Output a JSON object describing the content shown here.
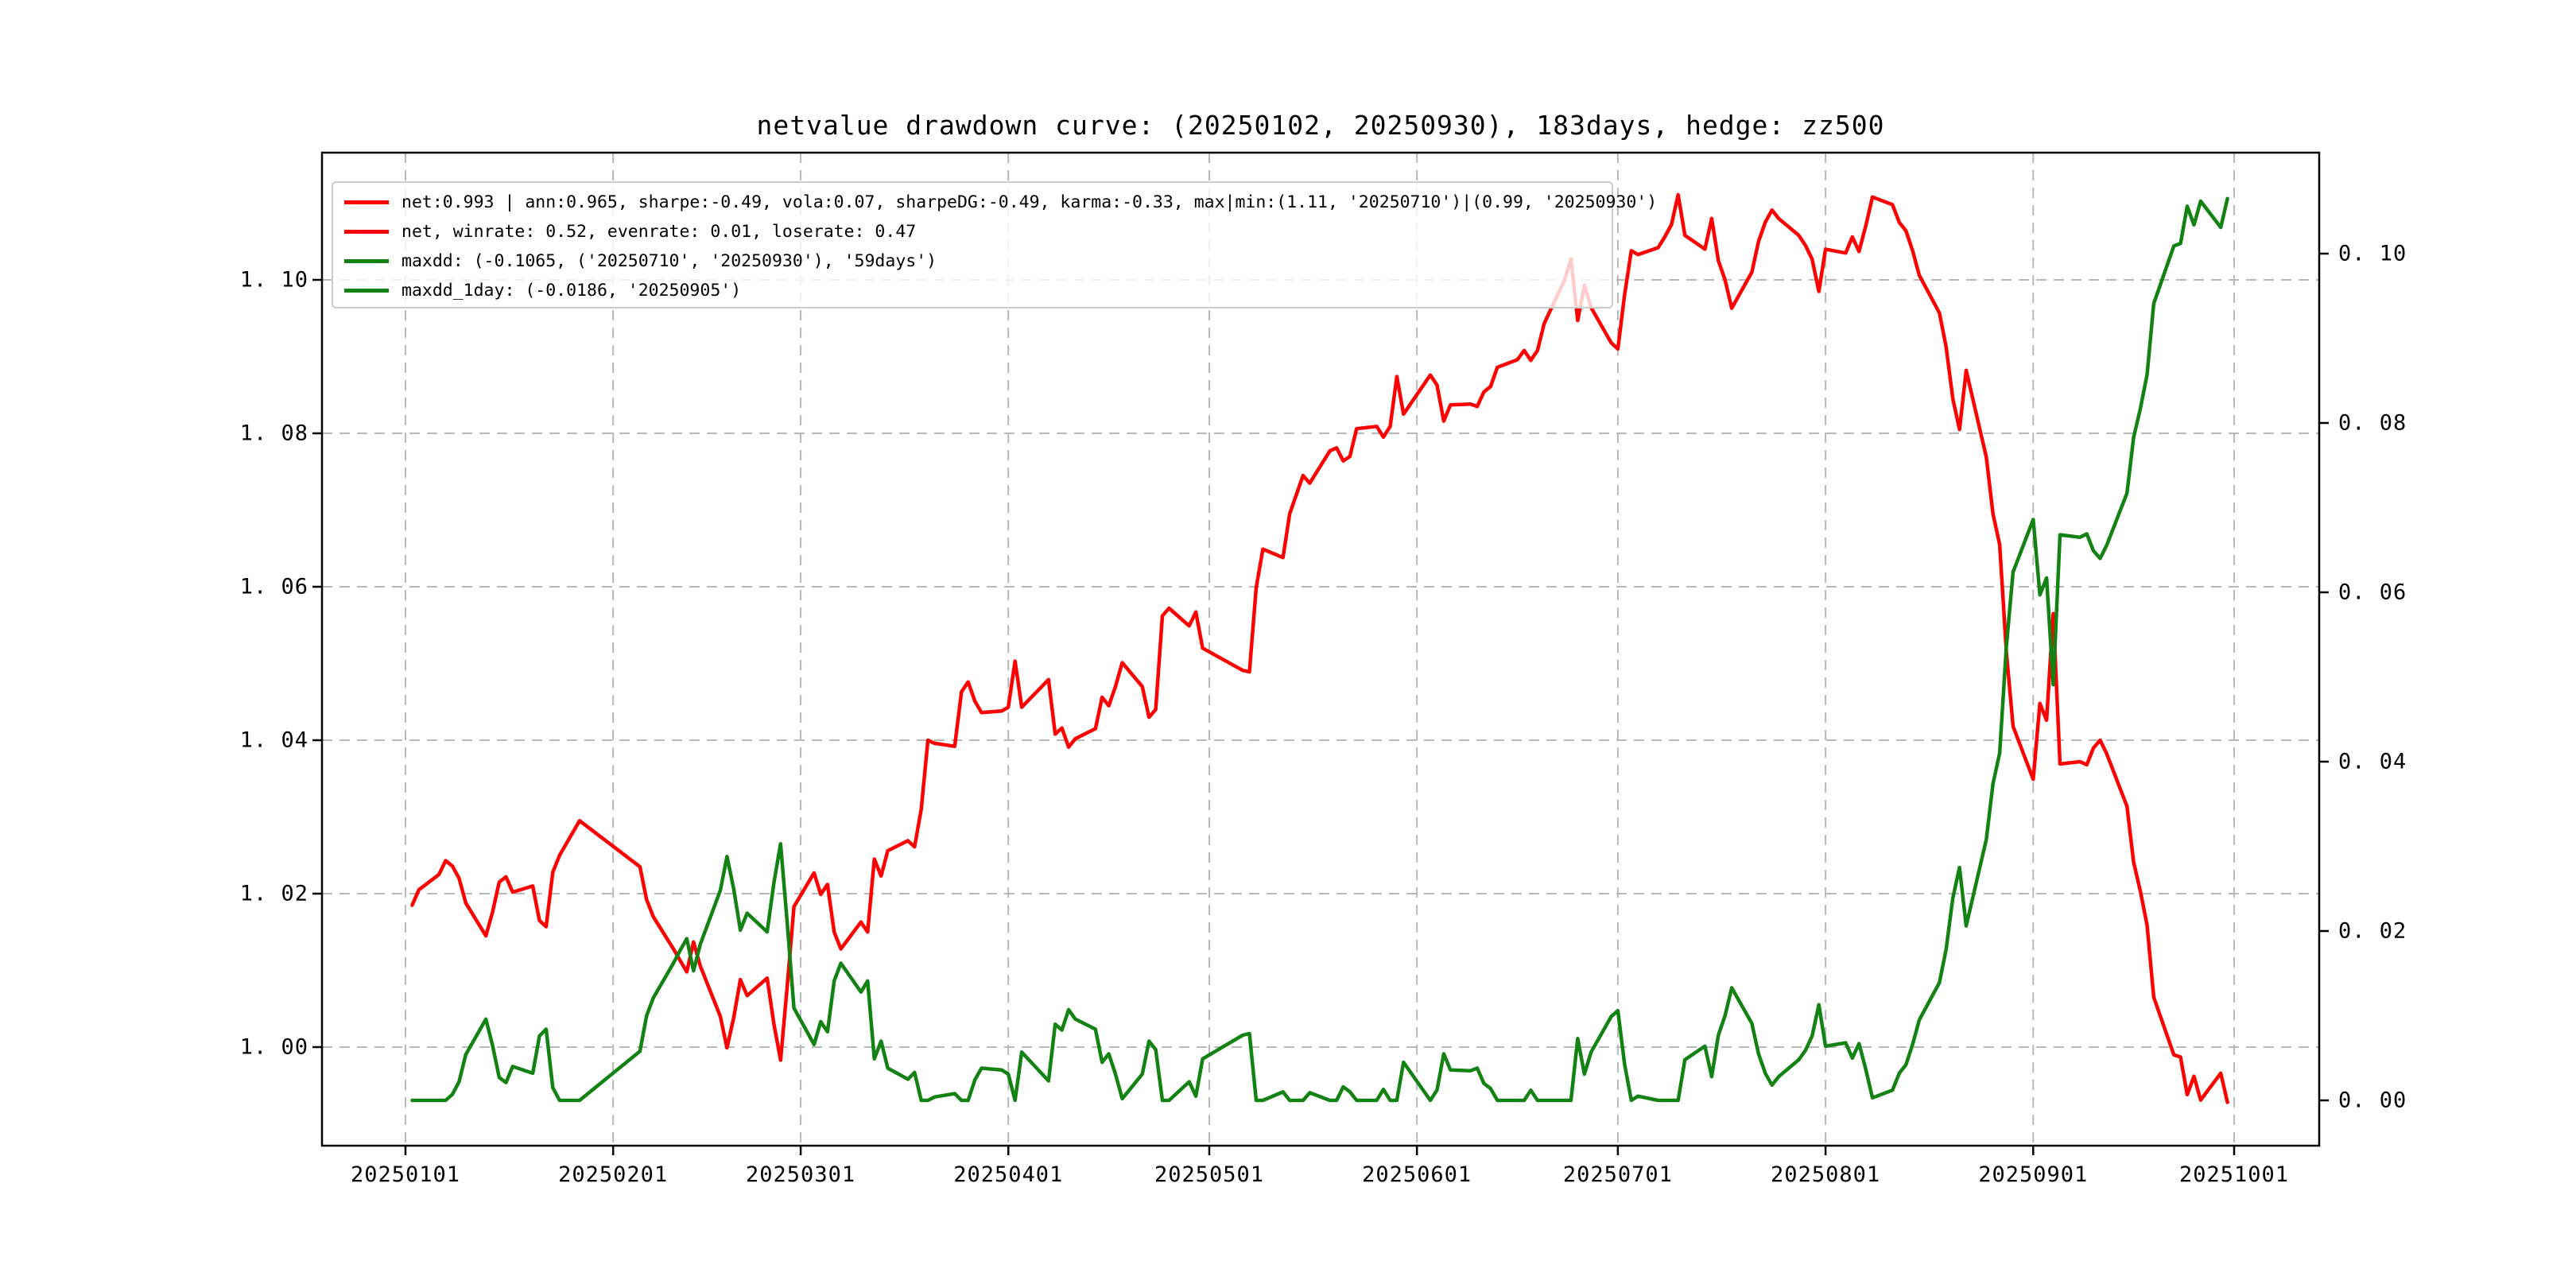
{
  "title": "netvalue drawdown curve: (20250102, 20250930), 183days, hedge: zz500",
  "legend": {
    "items": [
      {
        "label": "net:0.993 | ann:0.965, sharpe:-0.49, vola:0.07, sharpeDG:-0.49, karma:-0.33, max|min:(1.11, '20250710')|(0.99, '20250930')",
        "color": "#ff0000",
        "series": "net"
      },
      {
        "label": "net, winrate: 0.52, evenrate: 0.01, loserate: 0.47",
        "color": "#ff0000",
        "series": "net"
      },
      {
        "label": "maxdd: (-0.1065, ('20250710', '20250930'), '59days')",
        "color": "#128212",
        "series": "drawdown"
      },
      {
        "label": "maxdd_1day: (-0.0186, '20250905')",
        "color": "#128212",
        "series": "drawdown"
      }
    ]
  },
  "axes": {
    "y_left": {
      "ticks": [
        {
          "label": "1. 00",
          "value": 1.0
        },
        {
          "label": "1. 02",
          "value": 1.02
        },
        {
          "label": "1. 04",
          "value": 1.04
        },
        {
          "label": "1. 06",
          "value": 1.06
        },
        {
          "label": "1. 08",
          "value": 1.08
        },
        {
          "label": "1. 10",
          "value": 1.1
        }
      ]
    },
    "y_right": {
      "ticks": [
        {
          "label": "0. 00",
          "value": 0.0
        },
        {
          "label": "0. 02",
          "value": 0.02
        },
        {
          "label": "0. 04",
          "value": 0.04
        },
        {
          "label": "0. 06",
          "value": 0.06
        },
        {
          "label": "0. 08",
          "value": 0.08
        },
        {
          "label": "0. 10",
          "value": 0.1
        }
      ]
    },
    "x": {
      "ticks": [
        {
          "label": "20250101",
          "date": "20250101"
        },
        {
          "label": "20250201",
          "date": "20250201"
        },
        {
          "label": "20250301",
          "date": "20250301"
        },
        {
          "label": "20250401",
          "date": "20250401"
        },
        {
          "label": "20250501",
          "date": "20250501"
        },
        {
          "label": "20250601",
          "date": "20250601"
        },
        {
          "label": "20250701",
          "date": "20250701"
        },
        {
          "label": "20250801",
          "date": "20250801"
        },
        {
          "label": "20250901",
          "date": "20250901"
        },
        {
          "label": "20251001",
          "date": "20251001"
        }
      ]
    }
  },
  "chart_data": {
    "type": "line",
    "title": "netvalue drawdown curve: (20250102, 20250930), 183days, hedge: zz500",
    "x_range": [
      "20250102",
      "20250930"
    ],
    "trading_days": 183,
    "hedge": "zz500",
    "grid": true,
    "legend_position": "upper left",
    "ylim_left": [
      0.9872,
      1.1166
    ],
    "ylim_right": [
      -0.0053,
      0.1119
    ],
    "stats": {
      "net": 0.993,
      "ann": 0.965,
      "sharpe": -0.49,
      "vola": 0.07,
      "sharpeDG": -0.49,
      "karma": -0.33,
      "max": [
        1.11,
        "20250710"
      ],
      "min": [
        0.99,
        "20250930"
      ],
      "winrate": 0.52,
      "evenrate": 0.01,
      "loserate": 0.47,
      "maxdd": [
        -0.1065,
        [
          "20250710",
          "20250930"
        ],
        "59days"
      ],
      "maxdd_1day": [
        -0.0186,
        "20250905"
      ]
    },
    "series_meta": [
      {
        "name": "net",
        "axis": "left",
        "color": "#ff0000",
        "col": 1
      },
      {
        "name": "drawdown",
        "axis": "right",
        "color": "#128212",
        "col": 2
      }
    ],
    "columns": [
      "date",
      "net",
      "drawdown"
    ],
    "rows": [
      [
        "20250102",
        1.0185,
        0
      ],
      [
        "20250103",
        1.0205,
        0
      ],
      [
        "20250106",
        1.0225,
        0
      ],
      [
        "20250107",
        1.0243,
        0
      ],
      [
        "20250108",
        1.0236,
        0.0007
      ],
      [
        "20250109",
        1.022,
        0.0022
      ],
      [
        "20250110",
        1.0188,
        0.0054
      ],
      [
        "20250113",
        1.0145,
        0.0096
      ],
      [
        "20250114",
        1.0176,
        0.0065
      ],
      [
        "20250115",
        1.0215,
        0.0027
      ],
      [
        "20250116",
        1.0222,
        0.0021
      ],
      [
        "20250117",
        1.0202,
        0.004
      ],
      [
        "20250120",
        1.021,
        0.0032
      ],
      [
        "20250121",
        1.0165,
        0.0076
      ],
      [
        "20250122",
        1.0157,
        0.0084
      ],
      [
        "20250123",
        1.0228,
        0.0015
      ],
      [
        "20250124",
        1.025,
        0
      ],
      [
        "20250127",
        1.0295,
        0
      ],
      [
        "20250205",
        1.0235,
        0.0058
      ],
      [
        "20250206",
        1.0192,
        0.01
      ],
      [
        "20250207",
        1.017,
        0.0121
      ],
      [
        "20250210",
        1.0128,
        0.0162
      ],
      [
        "20250211",
        1.0113,
        0.0177
      ],
      [
        "20250212",
        1.0098,
        0.0191
      ],
      [
        "20250213",
        1.0137,
        0.0153
      ],
      [
        "20250214",
        1.0106,
        0.0184
      ],
      [
        "20250217",
        1.004,
        0.0248
      ],
      [
        "20250218",
        0.9999,
        0.0288
      ],
      [
        "20250219",
        1.0038,
        0.025
      ],
      [
        "20250220",
        1.0088,
        0.0201
      ],
      [
        "20250221",
        1.0067,
        0.0221
      ],
      [
        "20250224",
        1.009,
        0.0199
      ],
      [
        "20250225",
        1.003,
        0.0257
      ],
      [
        "20250226",
        0.9983,
        0.0303
      ],
      [
        "20250227",
        1.008,
        0.0209
      ],
      [
        "20250228",
        1.0183,
        0.0109
      ],
      [
        "20250303",
        1.0227,
        0.0066
      ],
      [
        "20250304",
        1.0199,
        0.0093
      ],
      [
        "20250305",
        1.0212,
        0.0081
      ],
      [
        "20250306",
        1.015,
        0.0141
      ],
      [
        "20250307",
        1.0128,
        0.0162
      ],
      [
        "20250310",
        1.0163,
        0.0128
      ],
      [
        "20250311",
        1.015,
        0.0141
      ],
      [
        "20250312",
        1.0245,
        0.0049
      ],
      [
        "20250313",
        1.0223,
        0.007
      ],
      [
        "20250314",
        1.0256,
        0.0038
      ],
      [
        "20250317",
        1.0269,
        0.0025
      ],
      [
        "20250318",
        1.0261,
        0.0033
      ],
      [
        "20250319",
        1.031,
        0
      ],
      [
        "20250320",
        1.04,
        0
      ],
      [
        "20250321",
        1.0396,
        0.0004
      ],
      [
        "20250324",
        1.0392,
        0.0008
      ],
      [
        "20250325",
        1.0463,
        0
      ],
      [
        "20250326",
        1.0476,
        0
      ],
      [
        "20250327",
        1.0451,
        0.0024
      ],
      [
        "20250328",
        1.0436,
        0.0038
      ],
      [
        "20250331",
        1.0438,
        0.0036
      ],
      [
        "20250401",
        1.0443,
        0.0031
      ],
      [
        "20250402",
        1.0503,
        0
      ],
      [
        "20250403",
        1.0443,
        0.0057
      ],
      [
        "20250407",
        1.0479,
        0.0023
      ],
      [
        "20250408",
        1.0408,
        0.009
      ],
      [
        "20250409",
        1.0416,
        0.0083
      ],
      [
        "20250410",
        1.0391,
        0.0107
      ],
      [
        "20250411",
        1.0402,
        0.0096
      ],
      [
        "20250414",
        1.0415,
        0.0084
      ],
      [
        "20250415",
        1.0456,
        0.0045
      ],
      [
        "20250416",
        1.0445,
        0.0055
      ],
      [
        "20250417",
        1.047,
        0.0031
      ],
      [
        "20250418",
        1.0501,
        0.0002
      ],
      [
        "20250421",
        1.047,
        0.0031
      ],
      [
        "20250422",
        1.043,
        0.007
      ],
      [
        "20250423",
        1.044,
        0.006
      ],
      [
        "20250424",
        1.0562,
        0
      ],
      [
        "20250425",
        1.0572,
        0
      ],
      [
        "20250428",
        1.0549,
        0.0022
      ],
      [
        "20250429",
        1.0567,
        0.0005
      ],
      [
        "20250430",
        1.052,
        0.0049
      ],
      [
        "20250506",
        1.0491,
        0.0077
      ],
      [
        "20250507",
        1.0489,
        0.0079
      ],
      [
        "20250508",
        1.0599,
        0
      ],
      [
        "20250509",
        1.0649,
        0
      ],
      [
        "20250512",
        1.0638,
        0.001
      ],
      [
        "20250513",
        1.0695,
        0
      ],
      [
        "20250514",
        1.072,
        0
      ],
      [
        "20250515",
        1.0745,
        0
      ],
      [
        "20250516",
        1.0735,
        0.0009
      ],
      [
        "20250519",
        1.0777,
        0
      ],
      [
        "20250520",
        1.0781,
        0
      ],
      [
        "20250521",
        1.0764,
        0.0016
      ],
      [
        "20250522",
        1.077,
        0.001
      ],
      [
        "20250523",
        1.0806,
        0
      ],
      [
        "20250526",
        1.0809,
        0
      ],
      [
        "20250527",
        1.0795,
        0.0013
      ],
      [
        "20250528",
        1.0809,
        0
      ],
      [
        "20250529",
        1.0874,
        0
      ],
      [
        "20250530",
        1.0825,
        0.0045
      ],
      [
        "20250603",
        1.0876,
        0
      ],
      [
        "20250604",
        1.0863,
        0.0012
      ],
      [
        "20250605",
        1.0816,
        0.0055
      ],
      [
        "20250606",
        1.0837,
        0.0036
      ],
      [
        "20250609",
        1.0838,
        0.0035
      ],
      [
        "20250610",
        1.0835,
        0.0038
      ],
      [
        "20250611",
        1.0854,
        0.002
      ],
      [
        "20250612",
        1.0861,
        0.0014
      ],
      [
        "20250613",
        1.0886,
        0
      ],
      [
        "20250616",
        1.0896,
        0
      ],
      [
        "20250617",
        1.0908,
        0
      ],
      [
        "20250618",
        1.0895,
        0.0012
      ],
      [
        "20250619",
        1.0908,
        0
      ],
      [
        "20250620",
        1.0943,
        0
      ],
      [
        "20250623",
        1.0999,
        0
      ],
      [
        "20250624",
        1.1027,
        0
      ],
      [
        "20250625",
        1.0947,
        0.0073
      ],
      [
        "20250626",
        1.0993,
        0.0031
      ],
      [
        "20250627",
        1.0964,
        0.0057
      ],
      [
        "20250630",
        1.0918,
        0.0099
      ],
      [
        "20250701",
        1.091,
        0.0106
      ],
      [
        "20250702",
        1.098,
        0.0043
      ],
      [
        "20250703",
        1.1038,
        0
      ],
      [
        "20250704",
        1.1033,
        0.0005
      ],
      [
        "20250707",
        1.1042,
        0
      ],
      [
        "20250708",
        1.1056,
        0
      ],
      [
        "20250709",
        1.1072,
        0
      ],
      [
        "20250710",
        1.1111,
        0
      ],
      [
        "20250711",
        1.1058,
        0.0048
      ],
      [
        "20250714",
        1.104,
        0.0064
      ],
      [
        "20250715",
        1.108,
        0.0028
      ],
      [
        "20250716",
        1.1025,
        0.0077
      ],
      [
        "20250717",
        1.1,
        0.01
      ],
      [
        "20250718",
        1.0963,
        0.0133
      ],
      [
        "20250721",
        1.101,
        0.0091
      ],
      [
        "20250722",
        1.105,
        0.0055
      ],
      [
        "20250723",
        1.1075,
        0.0032
      ],
      [
        "20250724",
        1.1091,
        0.0018
      ],
      [
        "20250725",
        1.108,
        0.0028
      ],
      [
        "20250728",
        1.1058,
        0.0048
      ],
      [
        "20250729",
        1.1045,
        0.0059
      ],
      [
        "20250730",
        1.1027,
        0.0076
      ],
      [
        "20250731",
        1.0985,
        0.0113
      ],
      [
        "20250801",
        1.104,
        0.0064
      ],
      [
        "20250804",
        1.1035,
        0.0068
      ],
      [
        "20250805",
        1.1056,
        0.005
      ],
      [
        "20250806",
        1.1037,
        0.0067
      ],
      [
        "20250807",
        1.107,
        0.0037
      ],
      [
        "20250808",
        1.1108,
        0.0003
      ],
      [
        "20250811",
        1.1098,
        0.0012
      ],
      [
        "20250812",
        1.1075,
        0.0032
      ],
      [
        "20250813",
        1.1064,
        0.0042
      ],
      [
        "20250814",
        1.1038,
        0.0066
      ],
      [
        "20250815",
        1.1006,
        0.0095
      ],
      [
        "20250818",
        1.0957,
        0.0139
      ],
      [
        "20250819",
        1.0913,
        0.0178
      ],
      [
        "20250820",
        1.0845,
        0.0239
      ],
      [
        "20250821",
        1.0805,
        0.0275
      ],
      [
        "20250822",
        1.0882,
        0.0206
      ],
      [
        "20250825",
        1.0769,
        0.0308
      ],
      [
        "20250826",
        1.0695,
        0.0374
      ],
      [
        "20250827",
        1.0655,
        0.041
      ],
      [
        "20250828",
        1.0514,
        0.0537
      ],
      [
        "20250829",
        1.0418,
        0.0624
      ],
      [
        "20250901",
        1.0349,
        0.0686
      ],
      [
        "20250902",
        1.0448,
        0.0597
      ],
      [
        "20250903",
        1.0426,
        0.0617
      ],
      [
        "20250904",
        1.0565,
        0.0491
      ],
      [
        "20250905",
        1.0369,
        0.0668
      ],
      [
        "20250908",
        1.0372,
        0.0665
      ],
      [
        "20250909",
        1.0368,
        0.0669
      ],
      [
        "20250910",
        1.039,
        0.0649
      ],
      [
        "20250911",
        1.04,
        0.064
      ],
      [
        "20250912",
        1.0382,
        0.0656
      ],
      [
        "20250915",
        1.0314,
        0.0717
      ],
      [
        "20250916",
        1.0241,
        0.0783
      ],
      [
        "20250917",
        1.0203,
        0.0817
      ],
      [
        "20250918",
        1.0159,
        0.0857
      ],
      [
        "20250919",
        1.0065,
        0.0941
      ],
      [
        "20250922",
        0.999,
        0.1009
      ],
      [
        "20250923",
        0.9987,
        0.1012
      ],
      [
        "20250924",
        0.9938,
        0.1056
      ],
      [
        "20250925",
        0.9962,
        0.1034
      ],
      [
        "20250926",
        0.9931,
        0.1062
      ],
      [
        "20250929",
        0.9966,
        0.1031
      ],
      [
        "20250930",
        0.9928,
        0.1065
      ]
    ]
  }
}
